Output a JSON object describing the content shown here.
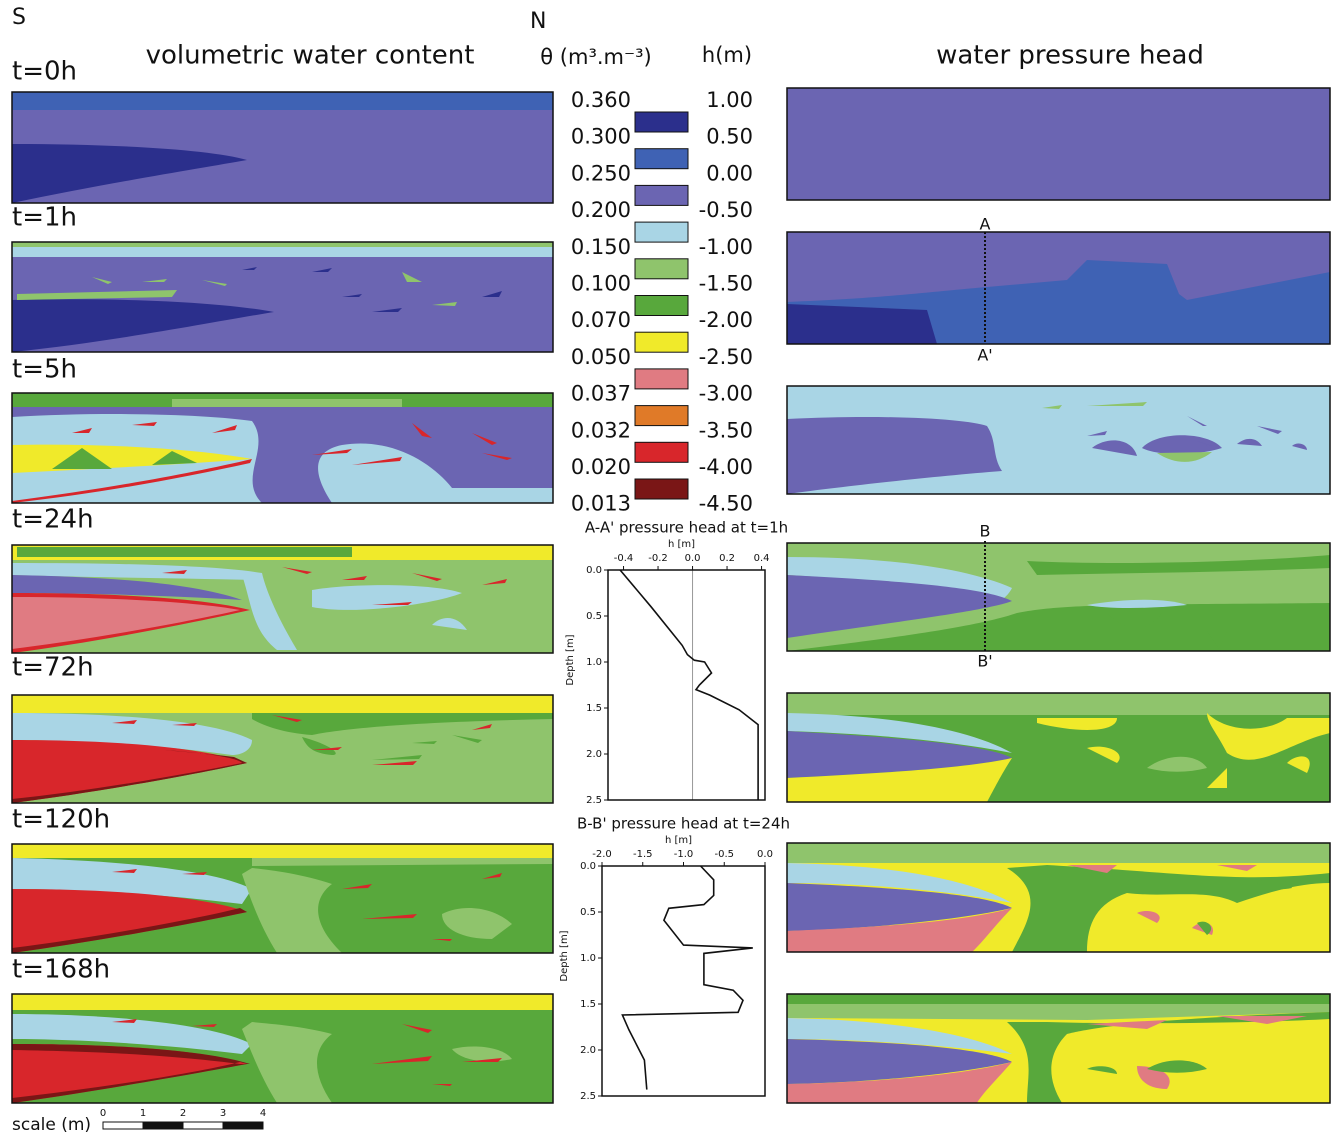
{
  "header": {
    "south": "S",
    "north": "N",
    "left_title": "volumetric water content",
    "right_title": "water pressure head"
  },
  "times": [
    "t=0h",
    "t=1h",
    "t=5h",
    "t=24h",
    "t=72h",
    "t=120h",
    "t=168h"
  ],
  "legend": {
    "theta_title": "θ (m³.m⁻³)",
    "h_title": "h(m)",
    "colors": [
      "#2b2f8c",
      "#3f62b4",
      "#6b65b2",
      "#a9d5e5",
      "#8fc46c",
      "#58a83c",
      "#f0ea2a",
      "#e07b82",
      "#e07a28",
      "#d8262b",
      "#7a1616"
    ],
    "theta_labels": [
      "0.360",
      "0.300",
      "0.250",
      "0.200",
      "0.150",
      "0.100",
      "0.070",
      "0.050",
      "0.037",
      "0.032",
      "0.020",
      "0.013"
    ],
    "h_labels": [
      "1.00",
      "0.50",
      "0.00",
      "-0.50",
      "-1.00",
      "-1.50",
      "-2.00",
      "-2.50",
      "-3.00",
      "-3.50",
      "-4.00",
      "-4.50"
    ]
  },
  "sections": {
    "a": "A",
    "a_prime": "A'",
    "b": "B",
    "b_prime": "B'"
  },
  "scale": {
    "label": "scale (m)",
    "ticks": [
      "0",
      "1",
      "2",
      "3",
      "4"
    ]
  },
  "chart_data": [
    {
      "type": "line",
      "title": "A-A' pressure head at t=1h",
      "x_label": "h [m]",
      "y_label": "Depth [m]",
      "xlim": [
        -0.49,
        0.42
      ],
      "xticks": [
        -0.4,
        -0.2,
        {
          "value": 0,
          "label": "0.0"
        },
        0.2,
        0.4
      ],
      "ylim": [
        0,
        2.5
      ],
      "y_inverted": true,
      "yticks": [
        {
          "value": 0,
          "label": "0.0"
        },
        0.5,
        {
          "value": 1,
          "label": "1.0"
        },
        1.5,
        {
          "value": 2,
          "label": "2.0"
        },
        2.5
      ],
      "reference_x": 0,
      "color": "#111111",
      "x": [
        -0.42,
        -0.24,
        -0.06,
        -0.03,
        0.01,
        0.07,
        0.11,
        0.04,
        0.02,
        0.1,
        0.27,
        0.38,
        0.38
      ],
      "values": [
        0,
        0.4,
        0.82,
        0.92,
        0.98,
        1.0,
        1.12,
        1.25,
        1.3,
        1.36,
        1.52,
        1.68,
        2.5
      ]
    },
    {
      "type": "line",
      "title": "B-B' pressure head at t=24h",
      "x_label": "h [m]",
      "y_label": "Depth [m]",
      "xlim": [
        -2.0,
        0.0
      ],
      "xticks": [
        {
          "value": -2,
          "label": "-2.0"
        },
        -1.5,
        {
          "value": -1,
          "label": "-1.0"
        },
        -0.5,
        {
          "value": 0,
          "label": "0.0"
        }
      ],
      "ylim": [
        0,
        2.5
      ],
      "y_inverted": true,
      "yticks": [
        {
          "value": 0,
          "label": "0.0"
        },
        0.5,
        {
          "value": 1,
          "label": "1.0"
        },
        1.5,
        {
          "value": 2,
          "label": "2.0"
        },
        2.5
      ],
      "color": "#111111",
      "x": [
        -0.79,
        -0.63,
        -0.63,
        -0.75,
        -1.18,
        -1.24,
        -1.0,
        -0.15,
        -0.75,
        -0.75,
        -0.39,
        -0.27,
        -0.33,
        -1.75,
        -1.67,
        -1.48,
        -1.45
      ],
      "values": [
        0,
        0.15,
        0.32,
        0.42,
        0.46,
        0.59,
        0.86,
        0.89,
        0.95,
        1.29,
        1.35,
        1.46,
        1.59,
        1.62,
        1.78,
        2.11,
        2.43
      ]
    }
  ]
}
